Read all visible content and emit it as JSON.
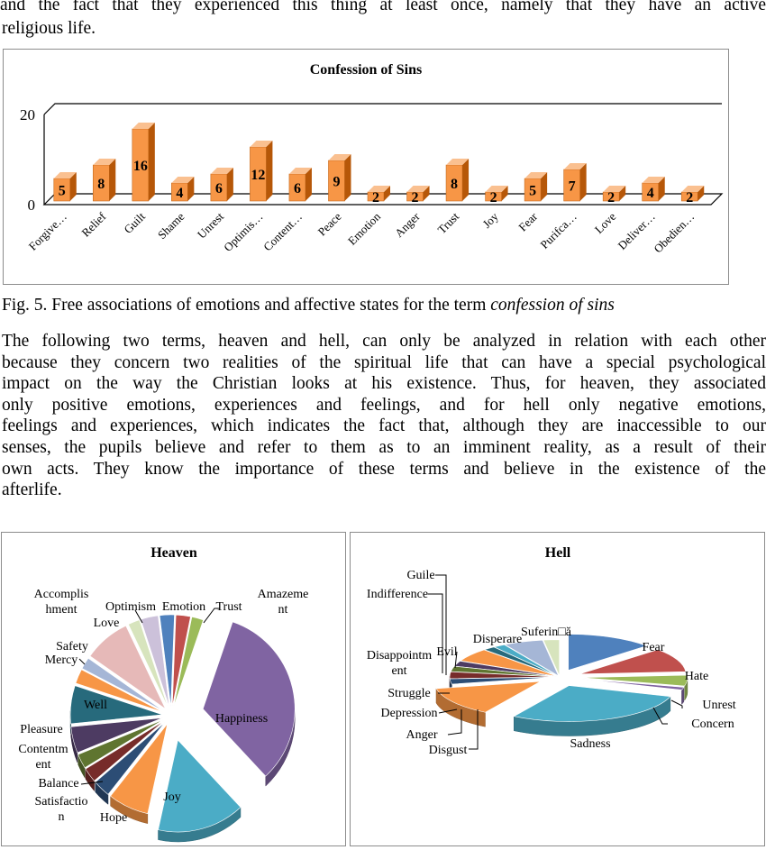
{
  "intro_lines": [
    "and the fact that they experienced this thing at least once, namely that they have an active",
    "religious life."
  ],
  "caption": {
    "prefix": "Fig. 5. Free associations of emotions and affective states for the term ",
    "emphasis": "confession of sins"
  },
  "paragraph_lines": [
    "The following two terms, heaven and hell, can only be analyzed in relation with each other",
    "because they concern two realities of the spiritual life that can have a special psychological",
    "impact on the way the Christian looks at his existence. Thus, for heaven, they associated",
    "only positive emotions, experiences and feelings, and for hell only negative emotions,",
    "feelings and experiences, which indicates the fact that, although they are inaccessible to our",
    "senses, the pupils believe and refer to them as to an imminent reality, as a result of their",
    "own acts. They know the importance of these terms and believe in the existence of the",
    "afterlife."
  ],
  "colors": {
    "bar_front": "#f79646",
    "bar_side": "#b65708",
    "bar_top": "#fac090"
  },
  "chart_data": [
    {
      "type": "bar",
      "title": "Confession of Sins",
      "categories": [
        "Forgive…",
        "Relief",
        "Guilt",
        "Shame",
        "Unrest",
        "Optimis…",
        "Content…",
        "Peace",
        "Emotion",
        "Anger",
        "Trust",
        "Joy",
        "Fear",
        "Purifca…",
        "Love",
        "Deliver…",
        "Obedien…"
      ],
      "values": [
        5,
        8,
        16,
        4,
        6,
        12,
        6,
        9,
        2,
        2,
        8,
        2,
        5,
        7,
        2,
        4,
        2
      ],
      "ylim": [
        0,
        20
      ],
      "yticks": [
        "0",
        "20"
      ],
      "grid": true,
      "legend": "none"
    },
    {
      "type": "pie",
      "title": "Heaven",
      "labels": [
        "Emotion",
        "Trust",
        "Amazement",
        "Happiness",
        "Joy",
        "Hope",
        "Satisfaction",
        "Balance",
        "Contentment",
        "Pleasure",
        "Well",
        "Mercy",
        "Safety",
        "Love",
        "Accomplishment",
        "Optimism"
      ],
      "label_text": [
        "Emotion",
        "Trust",
        "Amazeme\nnt",
        "Happiness",
        "Joy",
        "Hope",
        "Satisfactio\nn",
        "Balance",
        "Contentm\nent",
        "Pleasure",
        "Well",
        "Mercy",
        "Safety",
        "Love",
        "Accomplis\nhment",
        "Optimism"
      ],
      "values": [
        2.5,
        2.5,
        2,
        32,
        15,
        7,
        3,
        2.5,
        2.5,
        4.5,
        6.5,
        2.5,
        2,
        8,
        2,
        3
      ],
      "colors": [
        "#4f81bd",
        "#c0504d",
        "#9bbb59",
        "#8064a2",
        "#4bacc6",
        "#f79646",
        "#2c4d75",
        "#772c2a",
        "#5f7530",
        "#4d3b62",
        "#276a7c",
        "#f79646",
        "#a5b6d6",
        "#e6b9b8",
        "#d7e4bd",
        "#ccc1da"
      ],
      "legend": "none"
    },
    {
      "type": "pie",
      "title": "Hell",
      "labels": [
        "Fear",
        "Hate",
        "Unrest",
        "Concern",
        "Sadness",
        "Disgust",
        "Anger",
        "Depression",
        "Struggle",
        "Disappointment",
        "Evil",
        "Indifference",
        "Guile",
        "Disperare",
        "Suferință"
      ],
      "label_text": [
        "Fear",
        "Hate",
        "Unrest",
        "Concern",
        "Sadness",
        "Disgust",
        "Anger",
        "Depression",
        "Struggle",
        "Disappointm\nent",
        "Evil",
        "Indifference",
        "Guile",
        "Disperare",
        "Suferin□ă"
      ],
      "values": [
        11,
        9,
        4,
        1,
        24,
        11,
        2,
        2.5,
        2,
        2,
        5,
        1.5,
        1.5,
        5,
        2
      ],
      "colors": [
        "#4f81bd",
        "#c0504d",
        "#9bbb59",
        "#8064a2",
        "#4bacc6",
        "#f79646",
        "#2c4d75",
        "#772c2a",
        "#5f7530",
        "#4d3b62",
        "#f79646",
        "#276a7c",
        "#4bacc6",
        "#a5b6d6",
        "#d7e4bd"
      ],
      "legend": "none"
    }
  ]
}
